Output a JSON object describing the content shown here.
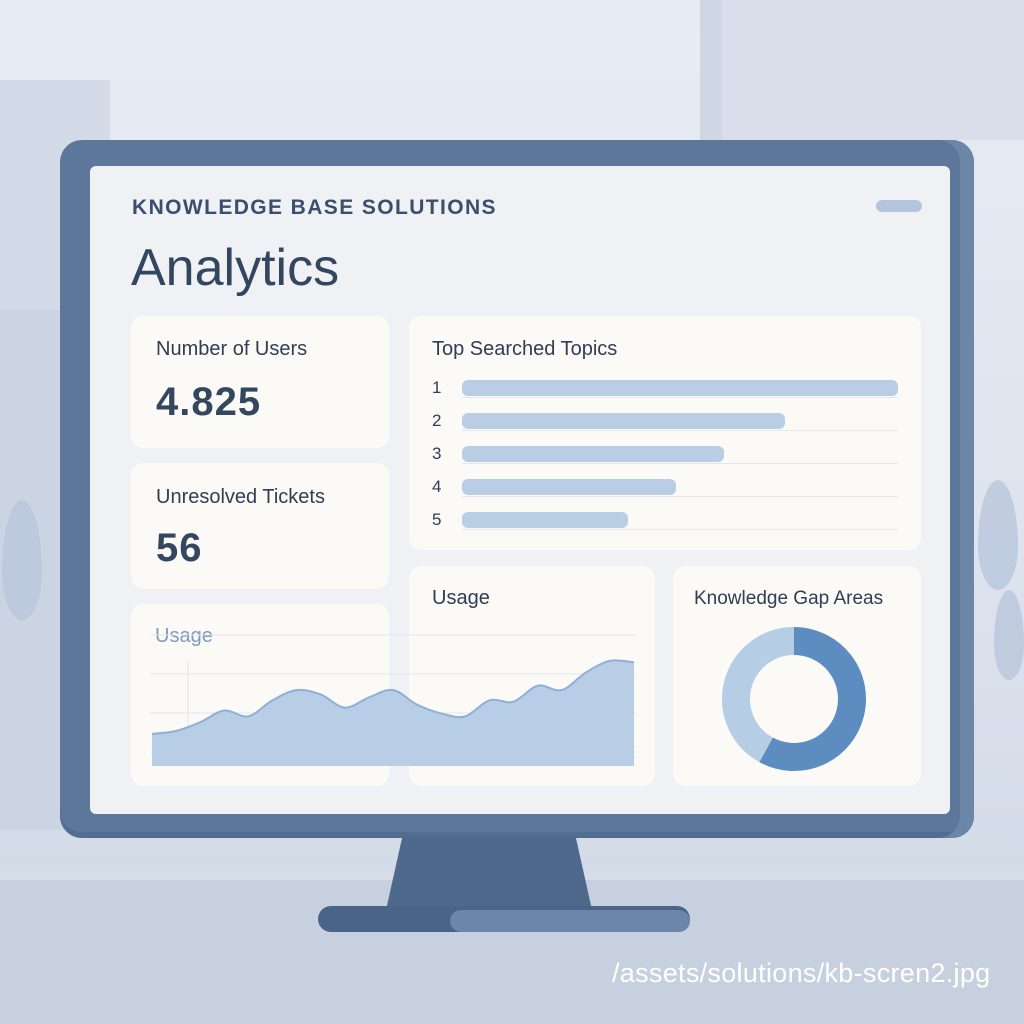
{
  "header": {
    "brand": "KNOWLEDGE BASE SOLUTIONS",
    "title": "Analytics"
  },
  "stats": {
    "users": {
      "label": "Number of Users",
      "value": "4.825"
    },
    "tickets": {
      "label": "Unresolved Tickets",
      "value": "56"
    }
  },
  "topics": {
    "title": "Top Searched Topics",
    "items": [
      {
        "rank": "1",
        "share": 1.0
      },
      {
        "rank": "2",
        "share": 0.74
      },
      {
        "rank": "3",
        "share": 0.6
      },
      {
        "rank": "4",
        "share": 0.49
      },
      {
        "rank": "5",
        "share": 0.38
      }
    ]
  },
  "usage": {
    "label_left": "Usage",
    "label_main": "Usage"
  },
  "knowledge_gap": {
    "title": "Knowledge Gap Areas"
  },
  "chart_data": [
    {
      "type": "area",
      "title": "Usage",
      "x": [
        0,
        1,
        2,
        3,
        4,
        5,
        6,
        7,
        8,
        9,
        10,
        11,
        12,
        13,
        14,
        15,
        16,
        17,
        18,
        19,
        20
      ],
      "values": [
        22,
        24,
        30,
        38,
        34,
        45,
        52,
        49,
        40,
        47,
        52,
        42,
        36,
        34,
        45,
        44,
        55,
        52,
        64,
        72,
        71
      ],
      "ylim": [
        0,
        100
      ]
    },
    {
      "type": "pie",
      "title": "Knowledge Gap Areas",
      "values": [
        58,
        42
      ],
      "colors": [
        "#5d8cc0",
        "#b6cde6"
      ]
    }
  ],
  "caption": "/assets/solutions/kb-scren2.jpg"
}
